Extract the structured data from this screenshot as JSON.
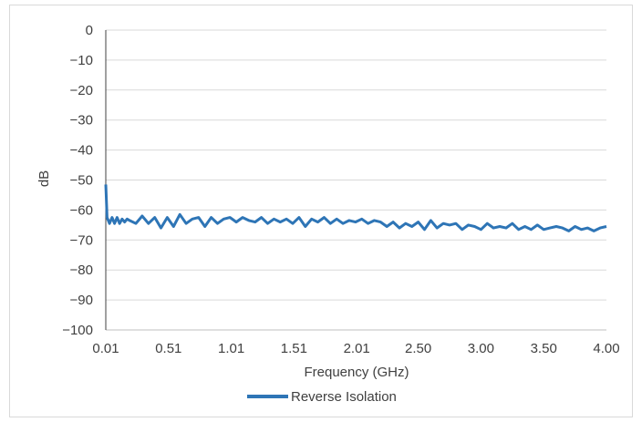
{
  "chart_data": {
    "type": "line",
    "title": "",
    "xlabel": "Frequency (GHz)",
    "ylabel": "dB",
    "x_tick_labels": [
      "0.01",
      "0.51",
      "1.01",
      "1.51",
      "2.01",
      "2.50",
      "3.00",
      "3.50",
      "4.00"
    ],
    "x_tick_values": [
      0.01,
      0.51,
      1.01,
      1.51,
      2.01,
      2.5,
      3.0,
      3.5,
      4.0
    ],
    "y_tick_labels": [
      "0",
      "−10",
      "−20",
      "−30",
      "−40",
      "−50",
      "−60",
      "−70",
      "−80",
      "−90",
      "−100"
    ],
    "y_tick_values": [
      0,
      -10,
      -20,
      -30,
      -40,
      -50,
      -60,
      -70,
      -80,
      -90,
      -100
    ],
    "xlim": [
      0.01,
      4.0
    ],
    "ylim": [
      -100,
      0
    ],
    "grid": "horizontal",
    "legend_position": "bottom",
    "series": [
      {
        "name": "Reverse Isolation",
        "color": "#2e75b6",
        "x": [
          0.01,
          0.02,
          0.04,
          0.06,
          0.08,
          0.1,
          0.12,
          0.14,
          0.16,
          0.18,
          0.2,
          0.25,
          0.3,
          0.35,
          0.4,
          0.45,
          0.5,
          0.55,
          0.6,
          0.65,
          0.7,
          0.75,
          0.8,
          0.85,
          0.9,
          0.95,
          1.0,
          1.05,
          1.1,
          1.15,
          1.2,
          1.25,
          1.3,
          1.35,
          1.4,
          1.45,
          1.5,
          1.55,
          1.6,
          1.65,
          1.7,
          1.75,
          1.8,
          1.85,
          1.9,
          1.95,
          2.0,
          2.05,
          2.1,
          2.15,
          2.2,
          2.25,
          2.3,
          2.35,
          2.4,
          2.45,
          2.5,
          2.55,
          2.6,
          2.65,
          2.7,
          2.75,
          2.8,
          2.85,
          2.9,
          2.95,
          3.0,
          3.05,
          3.1,
          3.15,
          3.2,
          3.25,
          3.3,
          3.35,
          3.4,
          3.45,
          3.5,
          3.55,
          3.6,
          3.65,
          3.7,
          3.75,
          3.8,
          3.85,
          3.9,
          3.95,
          4.0
        ],
        "values": [
          -51.5,
          -62.5,
          -64.5,
          -62.5,
          -64.5,
          -62.5,
          -64.5,
          -63.0,
          -64.0,
          -63.0,
          -63.5,
          -64.5,
          -62.0,
          -64.5,
          -62.5,
          -66.0,
          -62.5,
          -65.5,
          -61.5,
          -64.5,
          -63.0,
          -62.5,
          -65.5,
          -62.5,
          -64.5,
          -63.0,
          -62.5,
          -64.0,
          -62.5,
          -63.5,
          -64.0,
          -62.5,
          -64.5,
          -63.0,
          -64.0,
          -63.0,
          -64.5,
          -62.5,
          -65.5,
          -63.0,
          -64.0,
          -62.5,
          -64.5,
          -63.0,
          -64.5,
          -63.5,
          -64.0,
          -63.0,
          -64.5,
          -63.5,
          -64.0,
          -65.5,
          -64.0,
          -66.0,
          -64.5,
          -65.5,
          -64.0,
          -66.5,
          -63.5,
          -66.0,
          -64.5,
          -65.0,
          -64.5,
          -66.5,
          -65.0,
          -65.5,
          -66.5,
          -64.5,
          -66.0,
          -65.5,
          -66.0,
          -64.5,
          -66.5,
          -65.5,
          -66.5,
          -65.0,
          -66.5,
          -66.0,
          -65.5,
          -66.0,
          -67.0,
          -65.5,
          -66.5,
          -66.0,
          -67.0,
          -66.0,
          -65.5
        ]
      }
    ]
  }
}
